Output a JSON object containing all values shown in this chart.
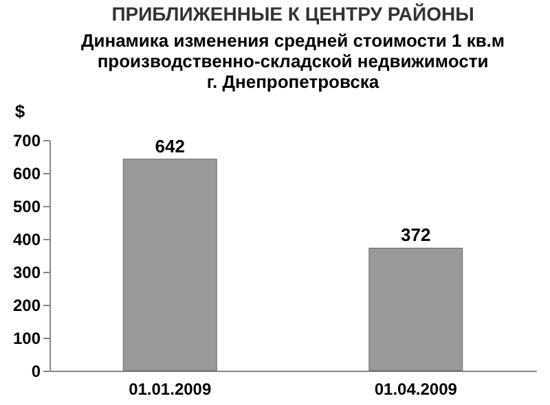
{
  "chart_data": {
    "type": "bar",
    "title": "ПРИБЛИЖЕННЫЕ  К ЦЕНТРУ РАЙОНЫ",
    "subtitle": "Динамика изменения средней стоимости 1 кв.м\nпроизводственно-складской недвижимости\nг. Днепропетровска",
    "ylabel": "$",
    "categories": [
      "01.01.2009",
      "01.04.2009"
    ],
    "values": [
      642,
      372
    ],
    "color": "#999999",
    "ylim": [
      0,
      700
    ],
    "yticks": [
      0,
      100,
      200,
      300,
      400,
      500,
      600,
      700
    ],
    "grid": false,
    "data_labels": true
  }
}
